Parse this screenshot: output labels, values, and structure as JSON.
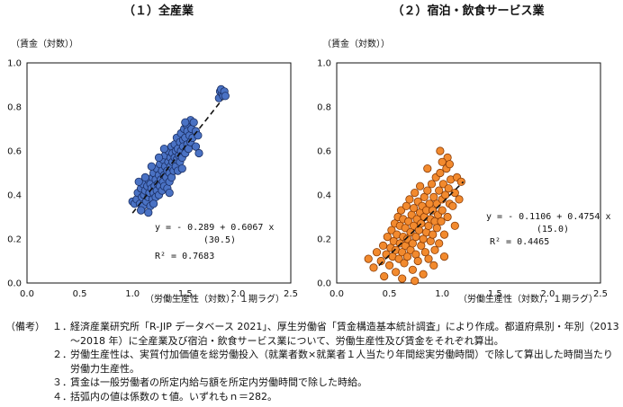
{
  "chart_data": [
    {
      "type": "scatter",
      "title": "（１）全産業",
      "ylabel": "（賃金（対数））",
      "xlabel": "（労働生産性（対数），１期ラグ）",
      "xlim": [
        0.0,
        2.5
      ],
      "ylim": [
        0.0,
        1.0
      ],
      "xticks": [
        "0.0",
        "0.5",
        "1.0",
        "1.5",
        "2.0",
        "2.5"
      ],
      "yticks": [
        "0.0",
        "0.2",
        "0.4",
        "0.6",
        "0.8",
        "1.0"
      ],
      "marker_color": "#4a72c4",
      "marker_edge": "#1b2f63",
      "regression": {
        "intercept": -0.289,
        "slope": 0.6067,
        "x_range": [
          1.0,
          1.85
        ]
      },
      "equation": "y = - 0.289 + 0.6067 x",
      "t_value": "(30.5)",
      "r2_label": "R² = 0.7683",
      "n": 282,
      "points": [
        [
          1.0,
          0.37
        ],
        [
          1.02,
          0.36
        ],
        [
          1.04,
          0.38
        ],
        [
          1.05,
          0.41
        ],
        [
          1.07,
          0.36
        ],
        [
          1.08,
          0.43
        ],
        [
          1.09,
          0.39
        ],
        [
          1.1,
          0.35
        ],
        [
          1.1,
          0.45
        ],
        [
          1.11,
          0.4
        ],
        [
          1.12,
          0.42
        ],
        [
          1.13,
          0.37
        ],
        [
          1.14,
          0.44
        ],
        [
          1.15,
          0.39
        ],
        [
          1.15,
          0.47
        ],
        [
          1.16,
          0.41
        ],
        [
          1.17,
          0.35
        ],
        [
          1.17,
          0.45
        ],
        [
          1.18,
          0.43
        ],
        [
          1.19,
          0.38
        ],
        [
          1.19,
          0.48
        ],
        [
          1.2,
          0.41
        ],
        [
          1.2,
          0.5
        ],
        [
          1.21,
          0.44
        ],
        [
          1.22,
          0.39
        ],
        [
          1.22,
          0.47
        ],
        [
          1.23,
          0.42
        ],
        [
          1.23,
          0.52
        ],
        [
          1.24,
          0.45
        ],
        [
          1.25,
          0.4
        ],
        [
          1.25,
          0.49
        ],
        [
          1.26,
          0.44
        ],
        [
          1.26,
          0.54
        ],
        [
          1.27,
          0.47
        ],
        [
          1.28,
          0.42
        ],
        [
          1.28,
          0.51
        ],
        [
          1.29,
          0.46
        ],
        [
          1.29,
          0.56
        ],
        [
          1.3,
          0.49
        ],
        [
          1.3,
          0.44
        ],
        [
          1.31,
          0.53
        ],
        [
          1.31,
          0.58
        ],
        [
          1.32,
          0.48
        ],
        [
          1.33,
          0.51
        ],
        [
          1.33,
          0.43
        ],
        [
          1.34,
          0.55
        ],
        [
          1.34,
          0.6
        ],
        [
          1.35,
          0.5
        ],
        [
          1.35,
          0.46
        ],
        [
          1.36,
          0.57
        ],
        [
          1.36,
          0.53
        ],
        [
          1.37,
          0.62
        ],
        [
          1.37,
          0.48
        ],
        [
          1.38,
          0.55
        ],
        [
          1.38,
          0.59
        ],
        [
          1.39,
          0.51
        ],
        [
          1.4,
          0.57
        ],
        [
          1.4,
          0.63
        ],
        [
          1.41,
          0.53
        ],
        [
          1.41,
          0.6
        ],
        [
          1.42,
          0.56
        ],
        [
          1.42,
          0.66
        ],
        [
          1.43,
          0.51
        ],
        [
          1.43,
          0.61
        ],
        [
          1.44,
          0.58
        ],
        [
          1.45,
          0.64
        ],
        [
          1.45,
          0.55
        ],
        [
          1.46,
          0.68
        ],
        [
          1.46,
          0.6
        ],
        [
          1.47,
          0.57
        ],
        [
          1.48,
          0.65
        ],
        [
          1.48,
          0.62
        ],
        [
          1.49,
          0.7
        ],
        [
          1.5,
          0.59
        ],
        [
          1.5,
          0.66
        ],
        [
          1.51,
          0.72
        ],
        [
          1.52,
          0.63
        ],
        [
          1.52,
          0.69
        ],
        [
          1.53,
          0.61
        ],
        [
          1.54,
          0.67
        ],
        [
          1.55,
          0.74
        ],
        [
          1.55,
          0.64
        ],
        [
          1.56,
          0.7
        ],
        [
          1.57,
          0.66
        ],
        [
          1.58,
          0.73
        ],
        [
          1.6,
          0.62
        ],
        [
          1.6,
          0.69
        ],
        [
          1.62,
          0.67
        ],
        [
          1.63,
          0.59
        ],
        [
          1.5,
          0.73
        ],
        [
          1.47,
          0.52
        ],
        [
          1.35,
          0.41
        ],
        [
          1.3,
          0.61
        ],
        [
          1.25,
          0.57
        ],
        [
          1.2,
          0.36
        ],
        [
          1.18,
          0.53
        ],
        [
          1.15,
          0.32
        ],
        [
          1.12,
          0.48
        ],
        [
          1.08,
          0.33
        ],
        [
          1.06,
          0.46
        ],
        [
          1.82,
          0.84
        ],
        [
          1.83,
          0.87
        ],
        [
          1.85,
          0.86
        ],
        [
          1.86,
          0.85
        ],
        [
          1.84,
          0.88
        ],
        [
          1.87,
          0.87
        ],
        [
          1.88,
          0.85
        ]
      ]
    },
    {
      "type": "scatter",
      "title": "（２）宿泊・飲食サービス業",
      "ylabel": "（賃金（対数））",
      "xlabel": "（労働生産性（対数），１期ラグ）",
      "xlim": [
        0.0,
        2.5
      ],
      "ylim": [
        0.0,
        1.0
      ],
      "xticks": [
        "0.0",
        "0.5",
        "1.0",
        "1.5",
        "2.0",
        "2.5"
      ],
      "yticks": [
        "0.0",
        "0.2",
        "0.4",
        "0.6",
        "0.8",
        "1.0"
      ],
      "marker_color": "#f28a2e",
      "marker_edge": "#8a3c06",
      "regression": {
        "intercept": -0.1106,
        "slope": 0.4754,
        "x_range": [
          0.4,
          1.2
        ]
      },
      "equation": "y = - 0.1106 + 0.4754 x",
      "t_value": "(15.0)",
      "r2_label": "R² = 0.4465",
      "n": 282,
      "points": [
        [
          0.3,
          0.11
        ],
        [
          0.35,
          0.07
        ],
        [
          0.38,
          0.14
        ],
        [
          0.42,
          0.1
        ],
        [
          0.44,
          0.17
        ],
        [
          0.45,
          0.03
        ],
        [
          0.47,
          0.13
        ],
        [
          0.48,
          0.21
        ],
        [
          0.5,
          0.08
        ],
        [
          0.51,
          0.16
        ],
        [
          0.52,
          0.24
        ],
        [
          0.53,
          0.12
        ],
        [
          0.54,
          0.19
        ],
        [
          0.55,
          0.27
        ],
        [
          0.56,
          0.05
        ],
        [
          0.56,
          0.15
        ],
        [
          0.57,
          0.22
        ],
        [
          0.58,
          0.3
        ],
        [
          0.59,
          0.11
        ],
        [
          0.6,
          0.18
        ],
        [
          0.6,
          0.26
        ],
        [
          0.61,
          0.33
        ],
        [
          0.62,
          0.14
        ],
        [
          0.63,
          0.21
        ],
        [
          0.63,
          0.29
        ],
        [
          0.64,
          0.09
        ],
        [
          0.65,
          0.17
        ],
        [
          0.65,
          0.25
        ],
        [
          0.66,
          0.35
        ],
        [
          0.67,
          0.12
        ],
        [
          0.67,
          0.2
        ],
        [
          0.68,
          0.28
        ],
        [
          0.69,
          0.38
        ],
        [
          0.7,
          0.15
        ],
        [
          0.7,
          0.23
        ],
        [
          0.71,
          0.31
        ],
        [
          0.72,
          0.06
        ],
        [
          0.72,
          0.18
        ],
        [
          0.73,
          0.26
        ],
        [
          0.73,
          0.34
        ],
        [
          0.74,
          0.41
        ],
        [
          0.75,
          0.13
        ],
        [
          0.75,
          0.21
        ],
        [
          0.76,
          0.29
        ],
        [
          0.77,
          0.37
        ],
        [
          0.77,
          0.1
        ],
        [
          0.78,
          0.24
        ],
        [
          0.79,
          0.32
        ],
        [
          0.79,
          0.44
        ],
        [
          0.8,
          0.17
        ],
        [
          0.8,
          0.27
        ],
        [
          0.81,
          0.35
        ],
        [
          0.82,
          0.04
        ],
        [
          0.82,
          0.2
        ],
        [
          0.83,
          0.3
        ],
        [
          0.83,
          0.39
        ],
        [
          0.84,
          0.14
        ],
        [
          0.85,
          0.23
        ],
        [
          0.85,
          0.33
        ],
        [
          0.86,
          0.42
        ],
        [
          0.87,
          0.26
        ],
        [
          0.87,
          0.11
        ],
        [
          0.88,
          0.36
        ],
        [
          0.89,
          0.19
        ],
        [
          0.89,
          0.29
        ],
        [
          0.9,
          0.45
        ],
        [
          0.91,
          0.22
        ],
        [
          0.91,
          0.33
        ],
        [
          0.92,
          0.39
        ],
        [
          0.93,
          0.15
        ],
        [
          0.93,
          0.28
        ],
        [
          0.94,
          0.48
        ],
        [
          0.95,
          0.25
        ],
        [
          0.95,
          0.36
        ],
        [
          0.96,
          0.31
        ],
        [
          0.97,
          0.42
        ],
        [
          0.97,
          0.18
        ],
        [
          0.98,
          0.5
        ],
        [
          0.99,
          0.28
        ],
        [
          1.0,
          0.38
        ],
        [
          1.0,
          0.33
        ],
        [
          1.01,
          0.45
        ],
        [
          1.02,
          0.22
        ],
        [
          1.03,
          0.4
        ],
        [
          1.04,
          0.52
        ],
        [
          1.05,
          0.3
        ],
        [
          1.06,
          0.43
        ],
        [
          1.07,
          0.36
        ],
        [
          1.08,
          0.47
        ],
        [
          1.1,
          0.35
        ],
        [
          1.12,
          0.41
        ],
        [
          1.14,
          0.48
        ],
        [
          1.16,
          0.38
        ],
        [
          1.18,
          0.46
        ],
        [
          1.12,
          0.26
        ],
        [
          1.05,
          0.57
        ],
        [
          1.07,
          0.54
        ],
        [
          0.98,
          0.6
        ],
        [
          1.0,
          0.55
        ],
        [
          0.62,
          0.02
        ],
        [
          0.74,
          0.01
        ],
        [
          0.92,
          0.08
        ],
        [
          1.02,
          0.12
        ],
        [
          0.86,
          0.52
        ]
      ]
    }
  ],
  "notes": {
    "head": "（備考）",
    "items": [
      {
        "num": "１．",
        "text": "経済産業研究所「R-JIP データベース 2021」、厚生労働省「賃金構造基本統計調査」により作成。都道府県別・年別（2013～2018 年）に全産業及び宿泊・飲食サービス業について、労働生産性及び賃金をそれぞれ算出。"
      },
      {
        "num": "２．",
        "text": "労働生産性は、実質付加価値を総労働投入（就業者数×就業者１人当たり年間総実労働時間）で除して算出した時間当たり労働力生産性。"
      },
      {
        "num": "３．",
        "text": "賃金は一般労働者の所定内給与額を所定内労働時間で除した時給。"
      },
      {
        "num": "４．",
        "text": "括弧内の値は係数のｔ値。いずれもｎ＝282。"
      }
    ]
  }
}
